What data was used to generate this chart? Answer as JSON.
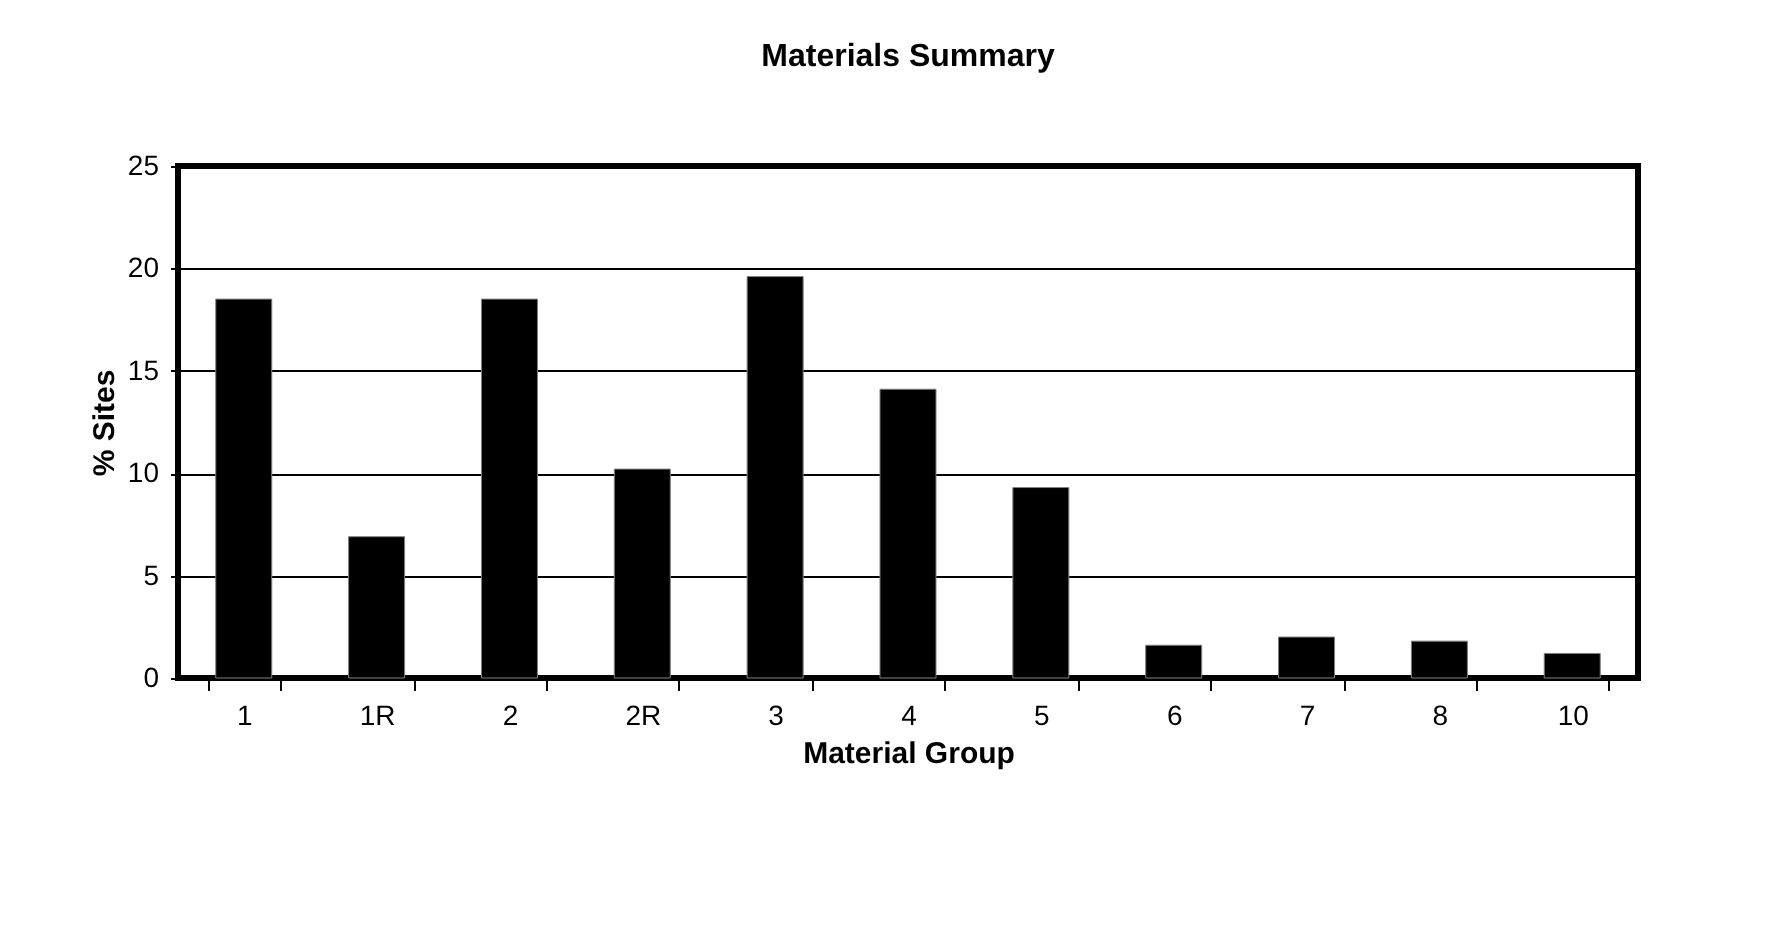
{
  "chart_data": {
    "type": "bar",
    "title": "Materials Summary",
    "xlabel": "Material Group",
    "ylabel": "% Sites",
    "categories": [
      "1",
      "1R",
      "2",
      "2R",
      "3",
      "4",
      "5",
      "6",
      "7",
      "8",
      "10"
    ],
    "values": [
      18.5,
      6.9,
      18.5,
      10.2,
      19.6,
      14.1,
      9.3,
      1.6,
      2.0,
      1.8,
      1.2
    ],
    "color": "#000000",
    "ylim": [
      0,
      25
    ],
    "yticks": [
      0,
      5,
      10,
      15,
      20,
      25
    ],
    "grid": "y"
  }
}
